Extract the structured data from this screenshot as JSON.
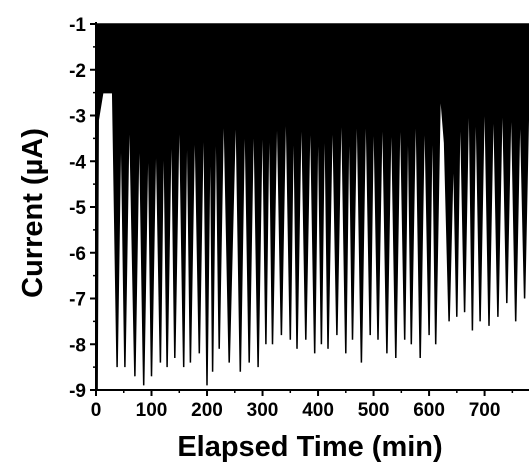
{
  "chart_data": {
    "type": "area",
    "title": "",
    "xlabel": "Elapsed Time (min)",
    "ylabel": "Current (µA)",
    "xlim": [
      0,
      780
    ],
    "ylim": [
      -9,
      -1
    ],
    "x_ticks": [
      0,
      100,
      200,
      300,
      400,
      500,
      600,
      700
    ],
    "x_tick_labels": [
      "0",
      "100",
      "200",
      "300",
      "400",
      "500",
      "600",
      "700"
    ],
    "y_ticks": [
      -1,
      -2,
      -3,
      -4,
      -5,
      -6,
      -7,
      -8,
      -9
    ],
    "y_tick_labels": [
      "-1",
      "-2",
      "-3",
      "-4",
      "-5",
      "-6",
      "-7",
      "-8",
      "-9"
    ],
    "grid": false,
    "legend": "none",
    "baseline": -1.0,
    "series": [
      {
        "color": "#000000",
        "envelope_lower": {
          "x": [
            0,
            2,
            4,
            12,
            20,
            30,
            38,
            45,
            52,
            60,
            70,
            78,
            86,
            94,
            100,
            108,
            116,
            122,
            128,
            136,
            142,
            150,
            158,
            164,
            170,
            178,
            186,
            194,
            200,
            206,
            210,
            216,
            222,
            230,
            240,
            252,
            260,
            268,
            276,
            284,
            292,
            300,
            306,
            312,
            318,
            326,
            334,
            342,
            350,
            356,
            362,
            370,
            378,
            386,
            394,
            400,
            406,
            412,
            418,
            426,
            434,
            442,
            450,
            456,
            462,
            470,
            478,
            486,
            494,
            500,
            508,
            516,
            524,
            532,
            540,
            548,
            556,
            562,
            568,
            576,
            584,
            592,
            600,
            606,
            612,
            620,
            628,
            636,
            644,
            650,
            656,
            664,
            672,
            678,
            684,
            692,
            700,
            708,
            716,
            724,
            732,
            740,
            748,
            756,
            764,
            772,
            780
          ],
          "y": [
            -9.0,
            -9.0,
            -3.1,
            -2.5,
            -2.5,
            -2.5,
            -8.5,
            -2.7,
            -8.5,
            -2.5,
            -8.7,
            -2.8,
            -8.9,
            -2.9,
            -8.7,
            -3.0,
            -8.4,
            -2.7,
            -8.5,
            -2.6,
            -8.3,
            -2.4,
            -8.5,
            -2.4,
            -8.4,
            -2.7,
            -8.2,
            -2.4,
            -8.9,
            -2.4,
            -8.6,
            -2.3,
            -8.1,
            -2.4,
            -8.4,
            -2.5,
            -8.6,
            -2.5,
            -8.4,
            -2.5,
            -8.5,
            -2.4,
            -8.0,
            -2.3,
            -8.0,
            -2.4,
            -7.8,
            -2.3,
            -7.9,
            -2.4,
            -8.1,
            -2.4,
            -7.9,
            -2.5,
            -8.2,
            -2.4,
            -8.0,
            -2.3,
            -8.1,
            -2.5,
            -7.8,
            -2.3,
            -8.2,
            -2.4,
            -7.9,
            -2.3,
            -8.4,
            -2.3,
            -7.8,
            -2.4,
            -7.9,
            -2.4,
            -8.2,
            -2.5,
            -8.3,
            -2.4,
            -7.9,
            -2.4,
            -8.0,
            -2.3,
            -8.3,
            -2.5,
            -7.8,
            -2.4,
            -8.0,
            -2.4,
            -3.6,
            -7.5,
            -3.5,
            -7.4,
            -2.4,
            -7.3,
            -2.0,
            -7.7,
            -2.2,
            -7.5,
            -2.1,
            -7.6,
            -2.3,
            -7.4,
            -2.2,
            -7.1,
            -2.3,
            -7.5,
            -2.5,
            -7.0,
            -2.3
          ]
        }
      }
    ]
  }
}
